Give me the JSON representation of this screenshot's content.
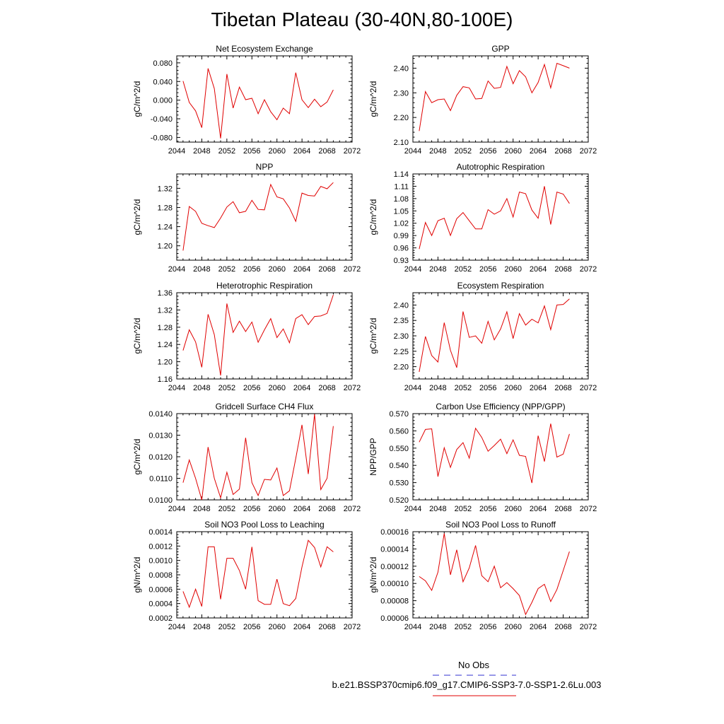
{
  "title": "Tibetan Plateau (30-40N,80-100E)",
  "legend": {
    "obs_label": "No Obs",
    "obs_color": "#3030d0",
    "model_label": "b.e21.BSSP370cmip6.f09_g17.CMIP6-SSP3-7.0-SSP1-2.6Lu.003",
    "model_color": "#e00000"
  },
  "chart_data": [
    {
      "type": "line",
      "title": "Net Ecosystem Exchange",
      "ylabel": "gC/m^2/d",
      "xlim": [
        2044,
        2072
      ],
      "ylim": [
        -0.09,
        0.095
      ],
      "xticks": [
        "2044",
        "2048",
        "2052",
        "2056",
        "2060",
        "2064",
        "2068",
        "2072"
      ],
      "yticks": [
        "-0.080",
        "-0.040",
        "0.000",
        "0.040",
        "0.080"
      ],
      "series": [
        {
          "x": [
            2045,
            2046,
            2047,
            2048,
            2049,
            2050,
            2051,
            2052,
            2053,
            2054,
            2055,
            2056,
            2057,
            2058,
            2059,
            2060,
            2061,
            2062,
            2063,
            2064,
            2065,
            2066,
            2067,
            2068,
            2069
          ],
          "values": [
            0.041,
            -0.005,
            -0.023,
            -0.059,
            0.068,
            0.025,
            -0.082,
            0.056,
            -0.017,
            0.028,
            0.001,
            0.004,
            -0.029,
            0.001,
            -0.025,
            -0.042,
            -0.017,
            -0.029,
            0.059,
            0.001,
            -0.016,
            0.002,
            -0.014,
            -0.004,
            0.022
          ]
        }
      ]
    },
    {
      "type": "line",
      "title": "GPP",
      "ylabel": "gC/m^2/d",
      "xlim": [
        2044,
        2072
      ],
      "ylim": [
        2.1,
        2.45
      ],
      "xticks": [
        "2044",
        "2048",
        "2052",
        "2056",
        "2060",
        "2064",
        "2068",
        "2072"
      ],
      "yticks": [
        "2.10",
        "2.20",
        "2.30",
        "2.40"
      ],
      "series": [
        {
          "x": [
            2045,
            2046,
            2047,
            2048,
            2049,
            2050,
            2051,
            2052,
            2053,
            2054,
            2055,
            2056,
            2057,
            2058,
            2059,
            2060,
            2061,
            2062,
            2063,
            2064,
            2065,
            2066,
            2067,
            2068,
            2069
          ],
          "values": [
            2.145,
            2.305,
            2.26,
            2.272,
            2.275,
            2.228,
            2.29,
            2.325,
            2.32,
            2.275,
            2.277,
            2.348,
            2.318,
            2.322,
            2.407,
            2.337,
            2.39,
            2.365,
            2.3,
            2.342,
            2.415,
            2.32,
            2.42,
            2.41,
            2.4
          ]
        }
      ]
    },
    {
      "type": "line",
      "title": "NPP",
      "ylabel": "gC/m^2/d",
      "xlim": [
        2044,
        2072
      ],
      "ylim": [
        1.17,
        1.35
      ],
      "xticks": [
        "2044",
        "2048",
        "2052",
        "2056",
        "2060",
        "2064",
        "2068",
        "2072"
      ],
      "yticks": [
        "1.20",
        "1.24",
        "1.28",
        "1.32"
      ],
      "series": [
        {
          "x": [
            2045,
            2046,
            2047,
            2048,
            2049,
            2050,
            2051,
            2052,
            2053,
            2054,
            2055,
            2056,
            2057,
            2058,
            2059,
            2060,
            2061,
            2062,
            2063,
            2064,
            2065,
            2066,
            2067,
            2068,
            2069
          ],
          "values": [
            1.19,
            1.282,
            1.272,
            1.247,
            1.242,
            1.238,
            1.258,
            1.281,
            1.292,
            1.269,
            1.272,
            1.295,
            1.276,
            1.275,
            1.328,
            1.302,
            1.298,
            1.279,
            1.251,
            1.31,
            1.305,
            1.304,
            1.324,
            1.319,
            1.332
          ]
        }
      ]
    },
    {
      "type": "line",
      "title": "Autotrophic Respiration",
      "ylabel": "gC/m^2/d",
      "xlim": [
        2044,
        2072
      ],
      "ylim": [
        0.93,
        1.14
      ],
      "xticks": [
        "2044",
        "2048",
        "2052",
        "2056",
        "2060",
        "2064",
        "2068",
        "2072"
      ],
      "yticks": [
        "0.93",
        "0.96",
        "0.99",
        "1.02",
        "1.05",
        "1.08",
        "1.11",
        "1.14"
      ],
      "series": [
        {
          "x": [
            2045,
            2046,
            2047,
            2048,
            2049,
            2050,
            2051,
            2052,
            2053,
            2054,
            2055,
            2056,
            2057,
            2058,
            2059,
            2060,
            2061,
            2062,
            2063,
            2064,
            2065,
            2066,
            2067,
            2068,
            2069
          ],
          "values": [
            0.957,
            1.022,
            0.99,
            1.026,
            1.032,
            0.99,
            1.031,
            1.046,
            1.026,
            1.006,
            1.006,
            1.053,
            1.042,
            1.05,
            1.08,
            1.035,
            1.096,
            1.092,
            1.052,
            1.032,
            1.11,
            1.017,
            1.096,
            1.091,
            1.068
          ]
        }
      ]
    },
    {
      "type": "line",
      "title": "Heterotrophic Respiration",
      "ylabel": "gC/m^2/d",
      "xlim": [
        2044,
        2072
      ],
      "ylim": [
        1.16,
        1.36
      ],
      "xticks": [
        "2044",
        "2048",
        "2052",
        "2056",
        "2060",
        "2064",
        "2068",
        "2072"
      ],
      "yticks": [
        "1.16",
        "1.20",
        "1.24",
        "1.28",
        "1.32",
        "1.36"
      ],
      "series": [
        {
          "x": [
            2045,
            2046,
            2047,
            2048,
            2049,
            2050,
            2051,
            2052,
            2053,
            2054,
            2055,
            2056,
            2057,
            2058,
            2059,
            2060,
            2061,
            2062,
            2063,
            2064,
            2065,
            2066,
            2067,
            2068,
            2069
          ],
          "values": [
            1.226,
            1.274,
            1.246,
            1.187,
            1.31,
            1.263,
            1.168,
            1.335,
            1.268,
            1.294,
            1.27,
            1.292,
            1.245,
            1.274,
            1.3,
            1.256,
            1.276,
            1.244,
            1.3,
            1.309,
            1.286,
            1.305,
            1.306,
            1.312,
            1.355
          ]
        }
      ]
    },
    {
      "type": "line",
      "title": "Ecosystem Respiration",
      "ylabel": "gC/m^2/d",
      "xlim": [
        2044,
        2072
      ],
      "ylim": [
        2.16,
        2.44
      ],
      "xticks": [
        "2044",
        "2048",
        "2052",
        "2056",
        "2060",
        "2064",
        "2068",
        "2072"
      ],
      "yticks": [
        "2.20",
        "2.25",
        "2.30",
        "2.35",
        "2.40"
      ],
      "series": [
        {
          "x": [
            2045,
            2046,
            2047,
            2048,
            2049,
            2050,
            2051,
            2052,
            2053,
            2054,
            2055,
            2056,
            2057,
            2058,
            2059,
            2060,
            2061,
            2062,
            2063,
            2064,
            2065,
            2066,
            2067,
            2068,
            2069
          ],
          "values": [
            2.183,
            2.298,
            2.236,
            2.215,
            2.343,
            2.253,
            2.197,
            2.379,
            2.295,
            2.3,
            2.276,
            2.347,
            2.287,
            2.322,
            2.378,
            2.291,
            2.372,
            2.335,
            2.354,
            2.342,
            2.397,
            2.32,
            2.4,
            2.402,
            2.42
          ]
        }
      ]
    },
    {
      "type": "line",
      "title": "Gridcell Surface CH4 Flux",
      "ylabel": "gC/m^2/d",
      "xlim": [
        2044,
        2072
      ],
      "ylim": [
        0.01,
        0.014
      ],
      "xticks": [
        "2044",
        "2048",
        "2052",
        "2056",
        "2060",
        "2064",
        "2068",
        "2072"
      ],
      "yticks": [
        "0.0100",
        "0.0110",
        "0.0120",
        "0.0130",
        "0.0140"
      ],
      "series": [
        {
          "x": [
            2045,
            2046,
            2047,
            2048,
            2049,
            2050,
            2051,
            2052,
            2053,
            2054,
            2055,
            2056,
            2057,
            2058,
            2059,
            2060,
            2061,
            2062,
            2063,
            2064,
            2065,
            2066,
            2067,
            2068,
            2069
          ],
          "values": [
            0.0108,
            0.01185,
            0.011,
            0.01,
            0.01245,
            0.011,
            0.0101,
            0.01128,
            0.01025,
            0.0105,
            0.01288,
            0.0108,
            0.0102,
            0.01095,
            0.01092,
            0.01148,
            0.0102,
            0.01042,
            0.01192,
            0.01348,
            0.0112,
            0.01398,
            0.01048,
            0.011,
            0.01342
          ]
        }
      ]
    },
    {
      "type": "line",
      "title": "Carbon Use Efficiency (NPP/GPP)",
      "ylabel": "NPP/GPP",
      "xlim": [
        2044,
        2072
      ],
      "ylim": [
        0.52,
        0.57
      ],
      "xticks": [
        "2044",
        "2048",
        "2052",
        "2056",
        "2060",
        "2064",
        "2068",
        "2072"
      ],
      "yticks": [
        "0.520",
        "0.530",
        "0.540",
        "0.550",
        "0.560",
        "0.570"
      ],
      "series": [
        {
          "x": [
            2045,
            2046,
            2047,
            2048,
            2049,
            2050,
            2051,
            2052,
            2053,
            2054,
            2055,
            2056,
            2057,
            2058,
            2059,
            2060,
            2061,
            2062,
            2063,
            2064,
            2065,
            2066,
            2067,
            2068,
            2069
          ],
          "values": [
            0.5535,
            0.5608,
            0.5612,
            0.5335,
            0.5502,
            0.5388,
            0.5492,
            0.5532,
            0.5442,
            0.5615,
            0.5562,
            0.5482,
            0.5515,
            0.5552,
            0.5468,
            0.5548,
            0.5458,
            0.5452,
            0.5298,
            0.5572,
            0.5422,
            0.5642,
            0.5448,
            0.5465,
            0.5582
          ]
        }
      ]
    },
    {
      "type": "line",
      "title": "Soil NO3 Pool Loss to Leaching",
      "ylabel": "gN/m^2/d",
      "xlim": [
        2044,
        2072
      ],
      "ylim": [
        0.0002,
        0.0014
      ],
      "xticks": [
        "2044",
        "2048",
        "2052",
        "2056",
        "2060",
        "2064",
        "2068",
        "2072"
      ],
      "yticks": [
        "0.0002",
        "0.0004",
        "0.0006",
        "0.0008",
        "0.0010",
        "0.0012",
        "0.0014"
      ],
      "series": [
        {
          "x": [
            2045,
            2046,
            2047,
            2048,
            2049,
            2050,
            2051,
            2052,
            2053,
            2054,
            2055,
            2056,
            2057,
            2058,
            2059,
            2060,
            2061,
            2062,
            2063,
            2064,
            2065,
            2066,
            2067,
            2068,
            2069
          ],
          "values": [
            0.00057,
            0.00035,
            0.0006,
            0.00036,
            0.00119,
            0.00119,
            0.00046,
            0.00103,
            0.00103,
            0.00086,
            0.0006,
            0.00119,
            0.00044,
            0.00039,
            0.00039,
            0.00074,
            0.0004,
            0.00037,
            0.00047,
            0.00091,
            0.00128,
            0.00118,
            0.00091,
            0.00119,
            0.00112
          ]
        }
      ]
    },
    {
      "type": "line",
      "title": "Soil NO3 Pool Loss to Runoff",
      "ylabel": "gN/m^2/d",
      "xlim": [
        2044,
        2072
      ],
      "ylim": [
        6e-05,
        0.00016
      ],
      "xticks": [
        "2044",
        "2048",
        "2052",
        "2056",
        "2060",
        "2064",
        "2068",
        "2072"
      ],
      "yticks": [
        "0.00006",
        "0.00008",
        "0.00010",
        "0.00012",
        "0.00014",
        "0.00016"
      ],
      "series": [
        {
          "x": [
            2045,
            2046,
            2047,
            2048,
            2049,
            2050,
            2051,
            2052,
            2053,
            2054,
            2055,
            2056,
            2057,
            2058,
            2059,
            2060,
            2061,
            2062,
            2063,
            2064,
            2065,
            2066,
            2067,
            2068,
            2069
          ],
          "values": [
            0.000108,
            0.000103,
            9.2e-05,
            0.000113,
            0.000158,
            0.00011,
            0.000139,
            0.000102,
            0.000118,
            0.000144,
            0.000109,
            0.000102,
            0.00012,
            9.5e-05,
            0.000101,
            9.4e-05,
            8.6e-05,
            6.4e-05,
            7.8e-05,
            9.4e-05,
            9.9e-05,
            7.9e-05,
            9.3e-05,
            0.000115,
            0.000137
          ]
        }
      ]
    }
  ]
}
